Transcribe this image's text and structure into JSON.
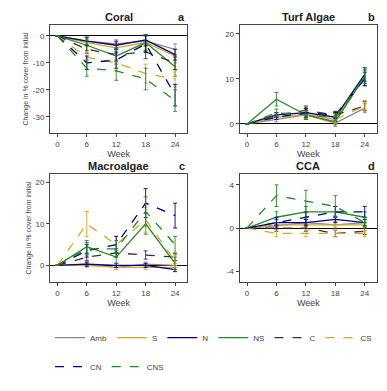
{
  "chart_data": [
    {
      "type": "line",
      "title": "Coral",
      "annotations": [
        "a"
      ],
      "x_label": "Week",
      "y_label": "Change in % cover from initial",
      "x": [
        0,
        6,
        12,
        18,
        24
      ],
      "xlim": [
        -1.5,
        26.5
      ],
      "xticks": [
        0,
        6,
        12,
        18,
        24
      ],
      "ylim": [
        -36,
        4
      ],
      "yticks": [
        -30,
        -20,
        -10,
        0
      ],
      "grid": false,
      "series": [
        {
          "name": "Amb",
          "color": "#888888",
          "line_style": "solid",
          "values": [
            0,
            -2.0,
            -3.0,
            -2.0,
            -5.0
          ],
          "errors": [
            0,
            1.5,
            1.5,
            2.0,
            2.0
          ]
        },
        {
          "name": "S",
          "color": "#DAA520",
          "line_style": "solid",
          "values": [
            0,
            -2.5,
            -4.5,
            -2.5,
            -7.5
          ],
          "errors": [
            0,
            1.5,
            2.0,
            2.5,
            2.5
          ]
        },
        {
          "name": "N",
          "color": "#00008B",
          "line_style": "solid",
          "values": [
            0,
            -2.0,
            -3.5,
            -1.5,
            -7.0
          ],
          "errors": [
            0,
            1.5,
            1.5,
            2.0,
            2.0
          ]
        },
        {
          "name": "NS",
          "color": "#228B22",
          "line_style": "solid",
          "values": [
            0,
            -3.5,
            -7.5,
            -2.5,
            -11.5
          ],
          "errors": [
            0,
            2.0,
            3.0,
            3.0,
            3.5
          ]
        },
        {
          "name": "C",
          "color": "#333333",
          "line_style": "dashed",
          "values": [
            0,
            -5.0,
            -7.0,
            -6.0,
            -10.0
          ],
          "errors": [
            0,
            1.5,
            2.0,
            2.5,
            2.5
          ]
        },
        {
          "name": "CS",
          "color": "#DAA520",
          "line_style": "dashed",
          "values": [
            0,
            -8.0,
            -10.0,
            -14.0,
            -16.0
          ],
          "errors": [
            0,
            2.0,
            3.0,
            3.5,
            3.0
          ]
        },
        {
          "name": "CN",
          "color": "#00008B",
          "line_style": "dashed",
          "values": [
            0,
            -10.0,
            -9.0,
            -3.0,
            -22.0
          ],
          "errors": [
            0,
            2.5,
            3.0,
            3.0,
            4.0
          ]
        },
        {
          "name": "CNS",
          "color": "#228B22",
          "line_style": "dashed",
          "values": [
            0,
            -12.0,
            -13.0,
            -16.0,
            -24.0
          ],
          "errors": [
            0,
            3.0,
            3.5,
            4.0,
            4.0
          ]
        }
      ]
    },
    {
      "type": "line",
      "title": "Turf Algae",
      "annotations": [
        "b"
      ],
      "x_label": "Week",
      "legend": "bottom",
      "x": [
        0,
        6,
        12,
        18,
        24
      ],
      "xlim": [
        -1.5,
        26.5
      ],
      "xticks": [
        0,
        6,
        12,
        18,
        24
      ],
      "ylim": [
        -2,
        22
      ],
      "yticks": [
        0,
        10,
        20
      ],
      "grid": false,
      "series": [
        {
          "name": "Amb",
          "color": "#888888",
          "line_style": "solid",
          "values": [
            0,
            1.0,
            2.0,
            0.2,
            3.5
          ],
          "errors": [
            0,
            0.5,
            1.0,
            0.3,
            1.0
          ]
        },
        {
          "name": "S",
          "color": "#DAA520",
          "line_style": "solid",
          "values": [
            0,
            1.5,
            2.2,
            1.0,
            10.5
          ],
          "errors": [
            0,
            0.5,
            1.0,
            1.0,
            1.5
          ]
        },
        {
          "name": "N",
          "color": "#00008B",
          "line_style": "solid",
          "values": [
            0,
            2.0,
            2.5,
            1.5,
            11.0
          ],
          "errors": [
            0,
            0.5,
            1.0,
            1.0,
            1.5
          ]
        },
        {
          "name": "NS",
          "color": "#228B22",
          "line_style": "solid",
          "values": [
            0,
            5.5,
            2.0,
            0.5,
            10.5
          ],
          "errors": [
            0,
            1.5,
            1.0,
            1.0,
            2.0
          ]
        },
        {
          "name": "C",
          "color": "#333333",
          "line_style": "dashed",
          "values": [
            0,
            2.0,
            3.0,
            2.0,
            4.0
          ],
          "errors": [
            0,
            0.5,
            1.0,
            0.5,
            1.0
          ]
        },
        {
          "name": "CS",
          "color": "#DAA520",
          "line_style": "dashed",
          "values": [
            0,
            1.5,
            2.0,
            1.0,
            4.0
          ],
          "errors": [
            0,
            0.5,
            0.8,
            0.8,
            1.2
          ]
        },
        {
          "name": "CN",
          "color": "#00008B",
          "line_style": "dashed",
          "values": [
            0,
            1.5,
            2.5,
            2.0,
            10.0
          ],
          "errors": [
            0,
            0.5,
            1.0,
            0.8,
            1.5
          ]
        },
        {
          "name": "CNS",
          "color": "#228B22",
          "line_style": "dashed",
          "values": [
            0,
            2.5,
            2.0,
            1.5,
            10.5
          ],
          "errors": [
            0,
            0.8,
            1.0,
            0.8,
            1.5
          ]
        }
      ]
    },
    {
      "type": "line",
      "title": "Macroalgae",
      "annotations": [
        "c"
      ],
      "x_label": "Week",
      "y_label": "Change in % cover from initial",
      "x": [
        0,
        6,
        12,
        18,
        24
      ],
      "xlim": [
        -1.5,
        26.5
      ],
      "xticks": [
        0,
        6,
        12,
        18,
        24
      ],
      "ylim": [
        -4,
        22
      ],
      "yticks": [
        0,
        10,
        20
      ],
      "grid": false,
      "series": [
        {
          "name": "Amb",
          "color": "#888888",
          "line_style": "solid",
          "values": [
            0,
            0.3,
            -0.5,
            0.3,
            0.0
          ],
          "errors": [
            0,
            0.5,
            0.5,
            0.5,
            0.5
          ]
        },
        {
          "name": "S",
          "color": "#DAA520",
          "line_style": "solid",
          "values": [
            0,
            0.0,
            -0.5,
            -0.5,
            -0.5
          ],
          "errors": [
            0,
            0.5,
            0.5,
            0.5,
            0.5
          ]
        },
        {
          "name": "N",
          "color": "#00008B",
          "line_style": "solid",
          "values": [
            0,
            0.3,
            0.0,
            0.0,
            -1.0
          ],
          "errors": [
            0,
            0.5,
            0.5,
            0.5,
            0.5
          ]
        },
        {
          "name": "NS",
          "color": "#228B22",
          "line_style": "solid",
          "values": [
            0,
            4.5,
            2.0,
            10.0,
            0.5
          ],
          "errors": [
            0,
            1.5,
            1.5,
            2.5,
            1.5
          ]
        },
        {
          "name": "C",
          "color": "#333333",
          "line_style": "dashed",
          "values": [
            0,
            2.0,
            3.0,
            2.5,
            2.0
          ],
          "errors": [
            0,
            0.8,
            1.0,
            1.0,
            0.8
          ]
        },
        {
          "name": "CS",
          "color": "#DAA520",
          "line_style": "dashed",
          "values": [
            0,
            10.0,
            5.0,
            11.0,
            1.0
          ],
          "errors": [
            0,
            3.0,
            2.0,
            3.0,
            1.5
          ]
        },
        {
          "name": "CN",
          "color": "#00008B",
          "line_style": "dashed",
          "values": [
            0,
            3.5,
            5.0,
            15.0,
            12.0
          ],
          "errors": [
            0,
            1.5,
            2.0,
            3.5,
            3.0
          ]
        },
        {
          "name": "CNS",
          "color": "#228B22",
          "line_style": "dashed",
          "values": [
            0,
            4.0,
            4.0,
            13.0,
            5.0
          ],
          "errors": [
            0,
            1.5,
            2.0,
            3.5,
            2.0
          ]
        }
      ]
    },
    {
      "type": "line",
      "title": "CCA",
      "annotations": [
        "d"
      ],
      "x_label": "Week",
      "x": [
        0,
        6,
        12,
        18,
        24
      ],
      "xlim": [
        -1.5,
        26.5
      ],
      "xticks": [
        0,
        6,
        12,
        18,
        24
      ],
      "ylim": [
        -5,
        5
      ],
      "yticks": [
        -4,
        0,
        4
      ],
      "grid": false,
      "series": [
        {
          "name": "Amb",
          "color": "#888888",
          "line_style": "solid",
          "values": [
            0,
            0.2,
            0.5,
            0.3,
            0.5
          ],
          "errors": [
            0,
            0.3,
            0.3,
            0.3,
            0.3
          ]
        },
        {
          "name": "S",
          "color": "#DAA520",
          "line_style": "solid",
          "values": [
            0,
            0.3,
            0.3,
            0.3,
            0.3
          ],
          "errors": [
            0,
            0.2,
            0.2,
            0.2,
            0.2
          ]
        },
        {
          "name": "N",
          "color": "#00008B",
          "line_style": "solid",
          "values": [
            0,
            0.5,
            0.5,
            0.8,
            0.5
          ],
          "errors": [
            0,
            0.3,
            0.3,
            0.3,
            0.3
          ]
        },
        {
          "name": "NS",
          "color": "#228B22",
          "line_style": "solid",
          "values": [
            0,
            1.0,
            1.5,
            1.5,
            1.0
          ],
          "errors": [
            0,
            0.5,
            0.5,
            0.5,
            0.5
          ]
        },
        {
          "name": "C",
          "color": "#333333",
          "line_style": "dashed",
          "values": [
            0,
            0.0,
            0.0,
            -0.5,
            -0.3
          ],
          "errors": [
            0,
            0.3,
            0.3,
            0.3,
            0.3
          ]
        },
        {
          "name": "CS",
          "color": "#DAA520",
          "line_style": "dashed",
          "values": [
            0,
            -0.5,
            -0.5,
            -0.5,
            -0.5
          ],
          "errors": [
            0,
            0.3,
            0.3,
            0.3,
            0.3
          ]
        },
        {
          "name": "CN",
          "color": "#00008B",
          "line_style": "dashed",
          "values": [
            0,
            0.5,
            1.0,
            1.5,
            1.5
          ],
          "errors": [
            0,
            0.5,
            0.5,
            0.5,
            0.5
          ]
        },
        {
          "name": "CNS",
          "color": "#228B22",
          "line_style": "dashed",
          "values": [
            0,
            3.0,
            2.5,
            2.0,
            0.5
          ],
          "errors": [
            0,
            1.0,
            1.0,
            1.0,
            0.5
          ]
        }
      ]
    }
  ]
}
